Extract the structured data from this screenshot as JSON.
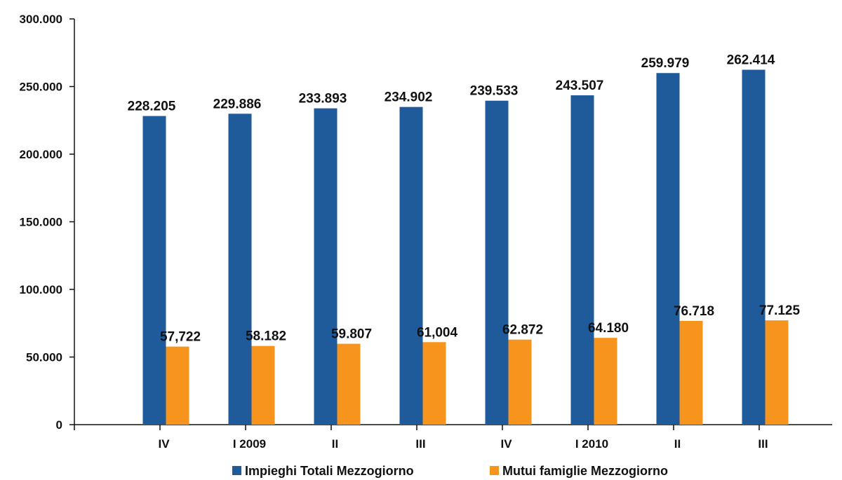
{
  "chart_data": {
    "type": "bar",
    "categories": [
      "IV",
      "I 2009",
      "II",
      "III",
      "IV",
      "I 2010",
      "II",
      "III"
    ],
    "series": [
      {
        "name": "Impieghi Totali Mezzogiorno",
        "color": "#1f5a9a",
        "values": [
          228205,
          229886,
          233893,
          234902,
          239533,
          243507,
          259979,
          262414
        ],
        "labels": [
          "228.205",
          "229.886",
          "233.893",
          "234.902",
          "239.533",
          "243.507",
          "259.979",
          "262.414"
        ]
      },
      {
        "name": "Mutui famiglie Mezzogiorno",
        "color": "#f7941d",
        "values": [
          57722,
          58182,
          59807,
          61004,
          62872,
          64180,
          76718,
          77125
        ],
        "labels": [
          "57,722",
          "58.182",
          "59.807",
          "61,004",
          "62.872",
          "64.180",
          "76.718",
          "77.125"
        ]
      }
    ],
    "ylim": [
      0,
      300000
    ],
    "yticks": [
      0,
      50000,
      100000,
      150000,
      200000,
      250000,
      300000
    ],
    "ytick_labels": [
      "0",
      "50.000",
      "100.000",
      "150.000",
      "200.000",
      "250.000",
      "300.000"
    ],
    "grid": false,
    "legend_position": "bottom"
  }
}
